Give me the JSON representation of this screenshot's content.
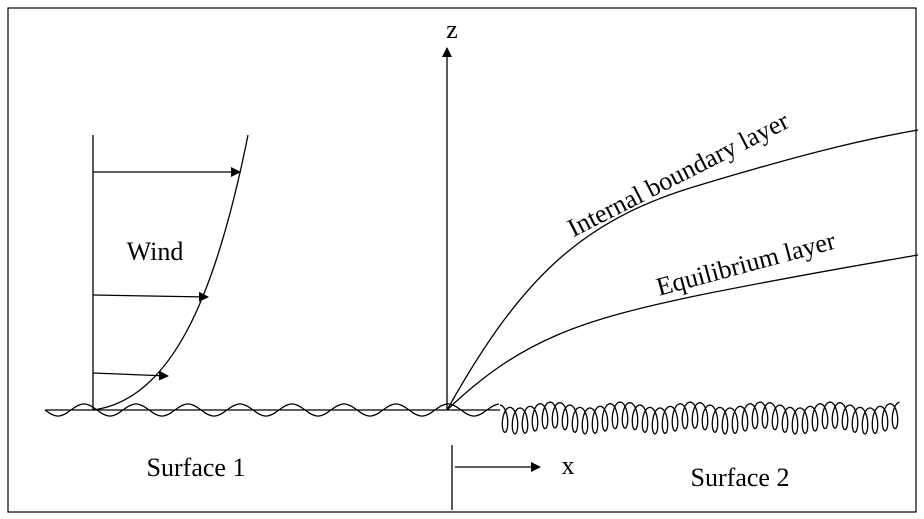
{
  "labels": {
    "z_axis": "z",
    "x_axis": "x",
    "internal_boundary_layer": "Internal boundary layer",
    "equilibrium_layer": "Equilibrium layer",
    "wind": "Wind",
    "surface_1": "Surface 1",
    "surface_2": "Surface 2"
  }
}
